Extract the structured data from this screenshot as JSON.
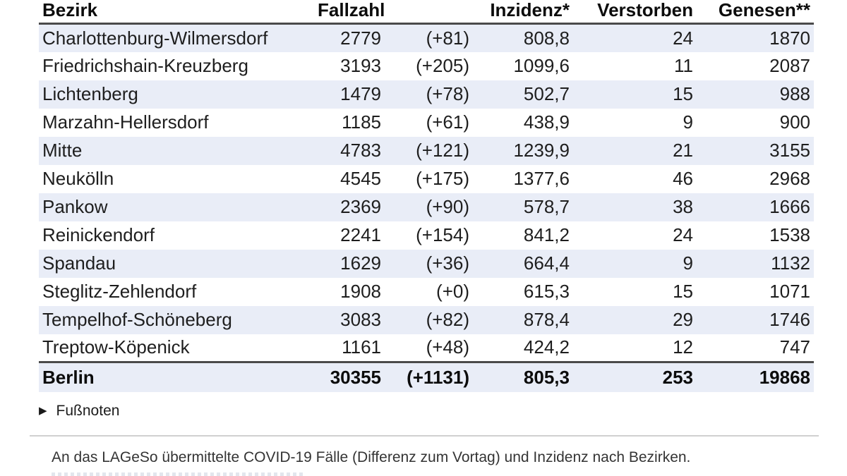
{
  "chart_data": {
    "type": "table",
    "columns": [
      "Bezirk",
      "Fallzahl",
      "",
      "Inzidenz*",
      "Verstorben",
      "Genesen**"
    ],
    "rows": [
      {
        "bezirk": "Charlottenburg-Wilmersdorf",
        "fallzahl": "2779",
        "diff": "(+81)",
        "inzidenz": "808,8",
        "verstorben": "24",
        "genesen": "1870"
      },
      {
        "bezirk": "Friedrichshain-Kreuzberg",
        "fallzahl": "3193",
        "diff": "(+205)",
        "inzidenz": "1099,6",
        "verstorben": "11",
        "genesen": "2087"
      },
      {
        "bezirk": "Lichtenberg",
        "fallzahl": "1479",
        "diff": "(+78)",
        "inzidenz": "502,7",
        "verstorben": "15",
        "genesen": "988"
      },
      {
        "bezirk": "Marzahn-Hellersdorf",
        "fallzahl": "1185",
        "diff": "(+61)",
        "inzidenz": "438,9",
        "verstorben": "9",
        "genesen": "900"
      },
      {
        "bezirk": "Mitte",
        "fallzahl": "4783",
        "diff": "(+121)",
        "inzidenz": "1239,9",
        "verstorben": "21",
        "genesen": "3155"
      },
      {
        "bezirk": "Neukölln",
        "fallzahl": "4545",
        "diff": "(+175)",
        "inzidenz": "1377,6",
        "verstorben": "46",
        "genesen": "2968"
      },
      {
        "bezirk": "Pankow",
        "fallzahl": "2369",
        "diff": "(+90)",
        "inzidenz": "578,7",
        "verstorben": "38",
        "genesen": "1666"
      },
      {
        "bezirk": "Reinickendorf",
        "fallzahl": "2241",
        "diff": "(+154)",
        "inzidenz": "841,2",
        "verstorben": "24",
        "genesen": "1538"
      },
      {
        "bezirk": "Spandau",
        "fallzahl": "1629",
        "diff": "(+36)",
        "inzidenz": "664,4",
        "verstorben": "9",
        "genesen": "1132"
      },
      {
        "bezirk": "Steglitz-Zehlendorf",
        "fallzahl": "1908",
        "diff": "(+0)",
        "inzidenz": "615,3",
        "verstorben": "15",
        "genesen": "1071"
      },
      {
        "bezirk": "Tempelhof-Schöneberg",
        "fallzahl": "3083",
        "diff": "(+82)",
        "inzidenz": "878,4",
        "verstorben": "29",
        "genesen": "1746"
      },
      {
        "bezirk": "Treptow-Köpenick",
        "fallzahl": "1161",
        "diff": "(+48)",
        "inzidenz": "424,2",
        "verstorben": "12",
        "genesen": "747"
      }
    ],
    "total_row": {
      "bezirk": "Berlin",
      "fallzahl": "30355",
      "diff": "(+1131)",
      "inzidenz": "805,3",
      "verstorben": "253",
      "genesen": "19868"
    },
    "caption": "An das LAGeSo übermittelte COVID-19 Fälle (Differenz zum Vortag) und Inzidenz nach Bezirken."
  },
  "footnotes_toggle": {
    "icon": "▶",
    "label": "Fußnoten"
  },
  "colors": {
    "row_alt_background": "#e9edf7",
    "dark_border": "#4a4a4a",
    "caption_border": "#d0d0d0"
  }
}
